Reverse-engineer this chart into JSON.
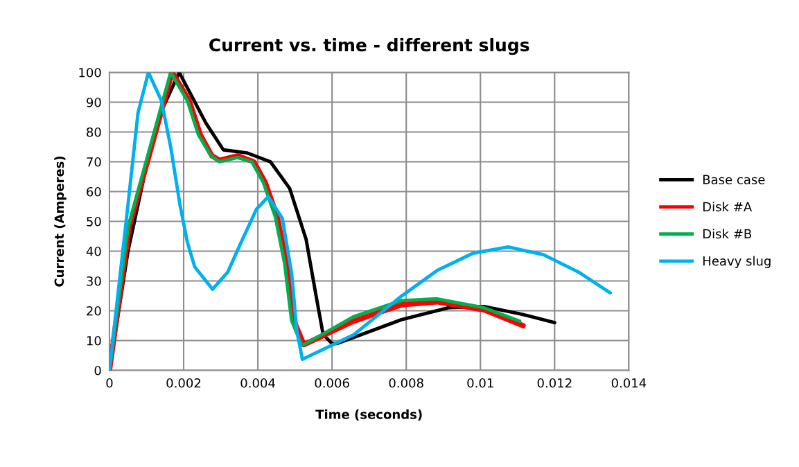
{
  "chart_data": {
    "type": "line",
    "title": "Current vs. time - different slugs",
    "xlabel": "Time (seconds)",
    "ylabel": "Current (Amperes)",
    "xlim": [
      0,
      0.014
    ],
    "xticks": [
      0,
      0.002,
      0.004,
      0.006,
      0.008,
      0.01,
      0.012,
      0.014
    ],
    "ylim": [
      0,
      100
    ],
    "yticks": [
      0,
      10,
      20,
      30,
      40,
      50,
      60,
      70,
      80,
      90,
      100
    ],
    "grid": true,
    "legend": "right",
    "marker": "none",
    "line_style": "solid",
    "series": [
      {
        "name": "Base case",
        "color": "#000000",
        "x": [
          0,
          0.0005,
          0.00096,
          0.0014,
          0.00188,
          0.0026,
          0.00307,
          0.0037,
          0.00434,
          0.00486,
          0.0053,
          0.00557,
          0.00576,
          0.006,
          0.00614,
          0.00787,
          0.00914,
          0.0101,
          0.01106,
          0.012
        ],
        "values": [
          0,
          40,
          66.5,
          87,
          100,
          83,
          74,
          73,
          70,
          61,
          44,
          25,
          12,
          9,
          9,
          17,
          21,
          21.4,
          19,
          16
        ]
      },
      {
        "name": "Disk #A",
        "color": "#ff0000",
        "x": [
          0,
          0.00053,
          0.00169,
          0.00215,
          0.00245,
          0.00276,
          0.00297,
          0.00345,
          0.00389,
          0.0042,
          0.00452,
          0.00477,
          0.00497,
          0.00524,
          0.00658,
          0.00787,
          0.00883,
          0.0101,
          0.01115
        ],
        "values": [
          0,
          48,
          100,
          90.5,
          79,
          72,
          70.5,
          72,
          70,
          63,
          51.6,
          36,
          16.7,
          8.6,
          16.5,
          22,
          23,
          20.3,
          15
        ]
      },
      {
        "name": "Disk #B",
        "color": "#00b050",
        "x": [
          0,
          0.0005,
          0.00165,
          0.0021,
          0.0024,
          0.00274,
          0.00297,
          0.00345,
          0.00384,
          0.00415,
          0.00447,
          0.00472,
          0.00491,
          0.00518,
          0.00524,
          0.00658,
          0.00787,
          0.00883,
          0.0101,
          0.01106
        ],
        "values": [
          0,
          48,
          100,
          90.5,
          79,
          72,
          70,
          71.4,
          70,
          63,
          51.6,
          36,
          16.7,
          8.6,
          8.6,
          18,
          23.4,
          24,
          21,
          16.5
        ]
      },
      {
        "name": "Heavy slug",
        "color": "#00b0f0",
        "x": [
          0,
          0.0005,
          0.00077,
          0.00105,
          0.0014,
          0.00165,
          0.0019,
          0.0021,
          0.0023,
          0.00278,
          0.00319,
          0.0035,
          0.00396,
          0.00428,
          0.00466,
          0.00491,
          0.00505,
          0.0052,
          0.00658,
          0.00787,
          0.00883,
          0.0098,
          0.01075,
          0.0117,
          0.01267,
          0.0135
        ],
        "values": [
          0,
          55.6,
          86.5,
          100,
          90.5,
          75,
          55.6,
          43,
          34.7,
          27.2,
          33,
          41.6,
          54,
          58.3,
          51,
          32.6,
          13.3,
          3.7,
          11.9,
          24.9,
          33.5,
          39.3,
          41.4,
          38.8,
          32.8,
          26
        ]
      }
    ]
  }
}
